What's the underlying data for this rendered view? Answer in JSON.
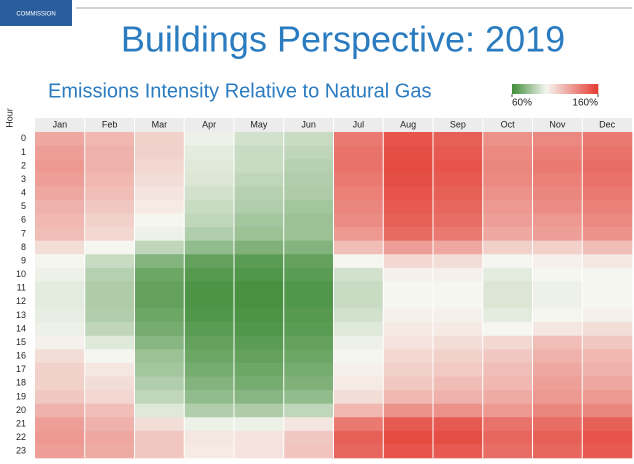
{
  "chart_data": {
    "type": "heatmap",
    "logo_text": "COMMISSION",
    "title": "Buildings Perspective: 2019",
    "subtitle": "Emissions Intensity Relative to Natural Gas",
    "y_label": "Hour",
    "categories": [
      "Jan",
      "Feb",
      "Mar",
      "Apr",
      "May",
      "Jun",
      "Jul",
      "Aug",
      "Sep",
      "Oct",
      "Nov",
      "Dec"
    ],
    "hours": [
      "0",
      "1",
      "2",
      "3",
      "4",
      "5",
      "6",
      "7",
      "8",
      "9",
      "10",
      "11",
      "12",
      "13",
      "14",
      "15",
      "16",
      "17",
      "18",
      "19",
      "20",
      "21",
      "22",
      "23"
    ],
    "values": [
      [
        125,
        128,
        130,
        128,
        125,
        122,
        120,
        118,
        108,
        100,
        98,
        96,
        96,
        97,
        98,
        102,
        108,
        112,
        112,
        115,
        122,
        128,
        130,
        128
      ],
      [
        120,
        122,
        122,
        120,
        118,
        115,
        112,
        110,
        100,
        90,
        86,
        84,
        84,
        85,
        88,
        95,
        100,
        105,
        108,
        110,
        118,
        122,
        125,
        124
      ],
      [
        112,
        112,
        110,
        108,
        106,
        104,
        100,
        98,
        88,
        75,
        70,
        68,
        68,
        70,
        72,
        76,
        80,
        82,
        85,
        88,
        95,
        108,
        115,
        115
      ],
      [
        98,
        96,
        95,
        94,
        92,
        90,
        88,
        85,
        78,
        68,
        65,
        63,
        63,
        64,
        66,
        68,
        70,
        72,
        75,
        78,
        85,
        98,
        105,
        104
      ],
      [
        92,
        90,
        90,
        88,
        86,
        85,
        82,
        80,
        74,
        66,
        64,
        62,
        62,
        63,
        64,
        66,
        68,
        70,
        72,
        76,
        84,
        98,
        106,
        106
      ],
      [
        90,
        88,
        86,
        85,
        84,
        82,
        80,
        80,
        75,
        68,
        66,
        64,
        64,
        65,
        66,
        68,
        70,
        72,
        74,
        78,
        88,
        105,
        115,
        116
      ],
      [
        140,
        142,
        142,
        140,
        138,
        136,
        134,
        130,
        118,
        100,
        92,
        90,
        90,
        92,
        95,
        98,
        100,
        102,
        104,
        108,
        120,
        140,
        148,
        146
      ],
      [
        152,
        154,
        155,
        154,
        152,
        150,
        148,
        145,
        128,
        110,
        102,
        100,
        100,
        102,
        104,
        106,
        110,
        112,
        115,
        120,
        132,
        150,
        155,
        152
      ],
      [
        148,
        150,
        152,
        150,
        148,
        146,
        144,
        140,
        125,
        108,
        102,
        100,
        100,
        102,
        104,
        108,
        112,
        114,
        118,
        122,
        132,
        150,
        154,
        150
      ],
      [
        132,
        135,
        136,
        135,
        132,
        130,
        128,
        125,
        112,
        100,
        96,
        94,
        94,
        96,
        100,
        110,
        115,
        118,
        120,
        124,
        130,
        142,
        146,
        144
      ],
      [
        135,
        138,
        140,
        138,
        136,
        134,
        130,
        128,
        112,
        102,
        100,
        98,
        98,
        100,
        105,
        118,
        122,
        125,
        128,
        130,
        136,
        144,
        148,
        146
      ],
      [
        140,
        142,
        144,
        142,
        140,
        138,
        135,
        132,
        118,
        105,
        100,
        100,
        100,
        102,
        108,
        115,
        120,
        122,
        125,
        130,
        136,
        148,
        152,
        150
      ]
    ],
    "clim": [
      60,
      160
    ],
    "colorscale": [
      {
        "value": 60,
        "color": "#3f8c38"
      },
      {
        "value": 100,
        "color": "#f6f6f1"
      },
      {
        "value": 160,
        "color": "#e33b31"
      }
    ],
    "cticks": [
      {
        "value": 60,
        "label": "60%"
      },
      {
        "value": 160,
        "label": "160%"
      }
    ]
  }
}
